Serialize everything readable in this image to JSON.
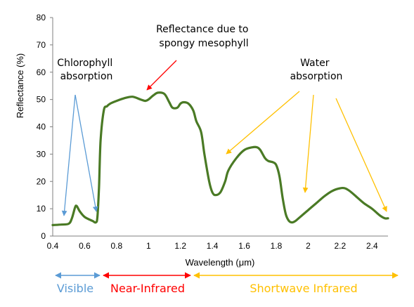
{
  "chart_data": {
    "type": "line",
    "title": "",
    "xlabel": "Wavelength (μm)",
    "ylabel": "Reflectance (%)",
    "xlim": [
      0.4,
      2.5
    ],
    "ylim": [
      0,
      80
    ],
    "xticks": [
      "0.4",
      "0.6",
      "0.8",
      "1",
      "1.2",
      "1.4",
      "1.6",
      "1.8",
      "2",
      "2.2",
      "2.4"
    ],
    "yticks": [
      "0",
      "10",
      "20",
      "30",
      "40",
      "50",
      "60",
      "70",
      "80"
    ],
    "grid": false,
    "legend": "none",
    "series": [
      {
        "color": "#4a7a25",
        "x": [
          0.4,
          0.45,
          0.5,
          0.52,
          0.54,
          0.55,
          0.57,
          0.6,
          0.65,
          0.67,
          0.68,
          0.69,
          0.7,
          0.72,
          0.74,
          0.76,
          0.8,
          0.85,
          0.9,
          0.95,
          0.98,
          1.0,
          1.03,
          1.06,
          1.1,
          1.13,
          1.15,
          1.18,
          1.2,
          1.22,
          1.25,
          1.28,
          1.3,
          1.33,
          1.35,
          1.38,
          1.4,
          1.42,
          1.45,
          1.48,
          1.5,
          1.55,
          1.6,
          1.65,
          1.68,
          1.7,
          1.73,
          1.75,
          1.78,
          1.8,
          1.82,
          1.84,
          1.86,
          1.88,
          1.9,
          1.92,
          1.95,
          2.0,
          2.05,
          2.1,
          2.15,
          2.2,
          2.23,
          2.26,
          2.3,
          2.35,
          2.4,
          2.45,
          2.48,
          2.5
        ],
        "y": [
          4,
          4.2,
          4.5,
          6.5,
          10.5,
          11,
          9,
          7,
          5.5,
          5,
          7,
          18,
          35,
          46,
          47.5,
          48.5,
          49.5,
          50.5,
          51,
          50,
          49.5,
          50,
          51.5,
          52.5,
          52,
          49,
          47,
          47,
          48.5,
          49,
          48.5,
          46,
          42,
          38,
          30,
          20,
          16,
          15,
          16,
          20,
          24,
          28.5,
          31.5,
          32.5,
          32.5,
          31.5,
          28.5,
          27.5,
          27,
          26,
          22,
          14,
          8,
          5.5,
          5,
          5.5,
          7,
          9.5,
          12,
          14.5,
          16.5,
          17.5,
          17.5,
          16.5,
          14.5,
          12,
          10,
          7.5,
          6.5,
          6.5
        ]
      }
    ],
    "annotations": [
      {
        "text": [
          "Chlorophyll",
          "absorption"
        ],
        "color": "#5b9bd5"
      },
      {
        "text": [
          "Reflectance due to",
          "spongy mesophyll"
        ],
        "color": "#ff0000"
      },
      {
        "text": [
          "Water",
          "absorption"
        ],
        "color": "#ffc000"
      }
    ],
    "bands": [
      {
        "label": "Visible",
        "color": "#5b9bd5"
      },
      {
        "label": "Near-Infrared",
        "color": "#ff0000"
      },
      {
        "label": "Shortwave Infrared",
        "color": "#ffc000"
      }
    ]
  }
}
